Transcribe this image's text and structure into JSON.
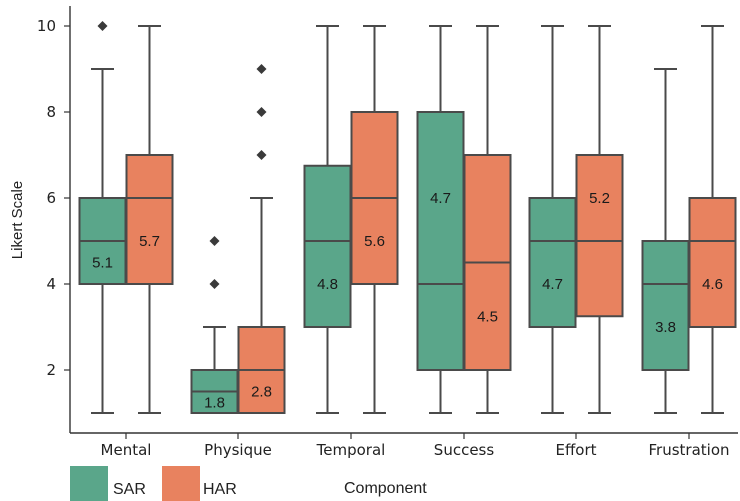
{
  "chart_data": {
    "type": "boxplot",
    "ylabel": "Likert Scale",
    "xlabel": "Component",
    "ylim": [
      0.5,
      10.4
    ],
    "yticks": [
      2,
      4,
      6,
      8,
      10
    ],
    "categories": [
      "Mental",
      "Physique",
      "Temporal",
      "Success",
      "Effort",
      "Frustration"
    ],
    "legend_position": "bottom-left",
    "series": [
      {
        "name": "SAR",
        "color": "#5aa68a",
        "boxes": [
          {
            "whisker_low": 1,
            "q1": 4,
            "median": 5,
            "q3": 6,
            "whisker_high": 9,
            "outliers": [
              10
            ],
            "mean_label": "5.1"
          },
          {
            "whisker_low": 1,
            "q1": 1,
            "median": 1.5,
            "q3": 2,
            "whisker_high": 3,
            "outliers": [
              4,
              5
            ],
            "mean_label": "1.8"
          },
          {
            "whisker_low": 1,
            "q1": 3,
            "median": 5,
            "q3": 6.75,
            "whisker_high": 10,
            "outliers": [],
            "mean_label": "4.8"
          },
          {
            "whisker_low": 1,
            "q1": 2,
            "median": 4,
            "q3": 8,
            "whisker_high": 10,
            "outliers": [],
            "mean_label": "4.7"
          },
          {
            "whisker_low": 1,
            "q1": 3,
            "median": 5,
            "q3": 6,
            "whisker_high": 10,
            "outliers": [],
            "mean_label": "4.7"
          },
          {
            "whisker_low": 1,
            "q1": 2,
            "median": 4,
            "q3": 5,
            "whisker_high": 9,
            "outliers": [],
            "mean_label": "3.8"
          }
        ]
      },
      {
        "name": "HAR",
        "color": "#e8825f",
        "boxes": [
          {
            "whisker_low": 1,
            "q1": 4,
            "median": 6,
            "q3": 7,
            "whisker_high": 10,
            "outliers": [],
            "mean_label": "5.7"
          },
          {
            "whisker_low": 1,
            "q1": 1,
            "median": 2,
            "q3": 3,
            "whisker_high": 6,
            "outliers": [
              7,
              8,
              9
            ],
            "mean_label": "2.8"
          },
          {
            "whisker_low": 1,
            "q1": 4,
            "median": 6,
            "q3": 8,
            "whisker_high": 10,
            "outliers": [],
            "mean_label": "5.6"
          },
          {
            "whisker_low": 1,
            "q1": 2,
            "median": 4.5,
            "q3": 7,
            "whisker_high": 10,
            "outliers": [],
            "mean_label": "4.5"
          },
          {
            "whisker_low": 1,
            "q1": 3.25,
            "median": 5,
            "q3": 7,
            "whisker_high": 10,
            "outliers": [],
            "mean_label": "5.2"
          },
          {
            "whisker_low": 1,
            "q1": 3,
            "median": 5,
            "q3": 6,
            "whisker_high": 10,
            "outliers": [],
            "mean_label": "4.6"
          }
        ]
      }
    ]
  }
}
